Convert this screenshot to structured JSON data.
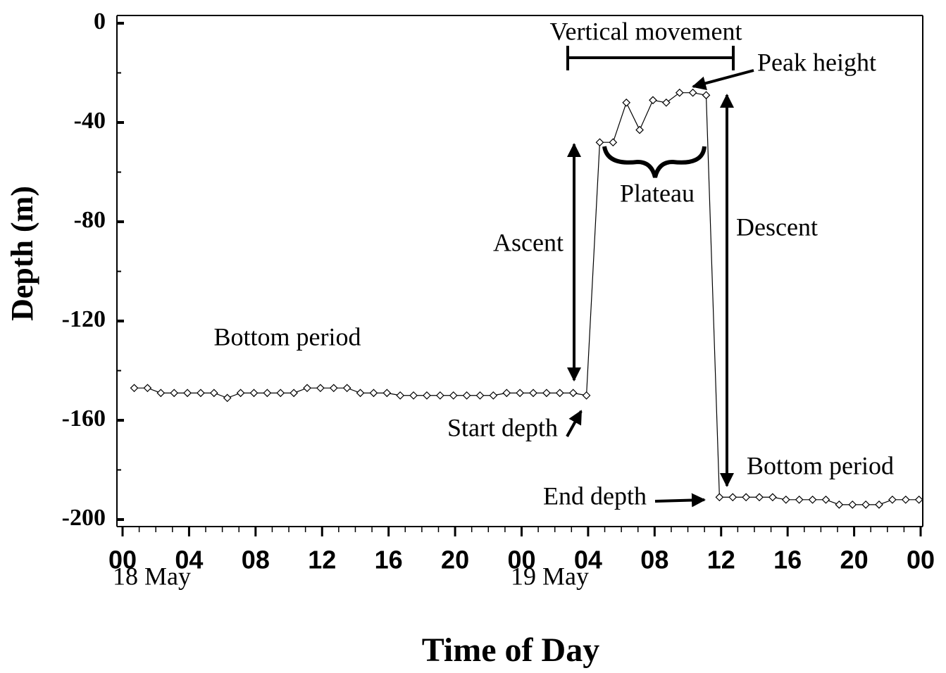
{
  "chart_data": {
    "type": "line",
    "xlabel": "Time of Day",
    "ylabel": "Depth (m)",
    "x": [
      0.7,
      1.5,
      2.3,
      3.1,
      3.9,
      4.7,
      5.5,
      6.3,
      7.1,
      7.9,
      8.7,
      9.5,
      10.3,
      11.1,
      11.9,
      12.7,
      13.5,
      14.3,
      15.1,
      15.9,
      16.7,
      17.5,
      18.3,
      19.1,
      19.9,
      20.7,
      21.5,
      22.3,
      23.1,
      23.9,
      24.7,
      25.5,
      26.3,
      27.1,
      27.9,
      28.7,
      29.5,
      30.3,
      31.1,
      31.9,
      32.7,
      33.5,
      34.3,
      35.1,
      35.9,
      36.7,
      37.5,
      38.3,
      39.1,
      39.9,
      40.7,
      41.5,
      42.3,
      43.1,
      43.9,
      44.7,
      45.5,
      46.3,
      47.1,
      47.9
    ],
    "series": [
      {
        "color": "#000000",
        "values": [
          -147,
          -147,
          -149,
          -149,
          -149,
          -149,
          -149,
          -151,
          -149,
          -149,
          -149,
          -149,
          -149,
          -147,
          -147,
          -147,
          -147,
          -149,
          -149,
          -149,
          -150,
          -150,
          -150,
          -150,
          -150,
          -150,
          -150,
          -150,
          -149,
          -149,
          -149,
          -149,
          -149,
          -149,
          -150,
          -48,
          -48,
          -32,
          -43,
          -31,
          -32,
          -28,
          -28,
          -29,
          -191,
          -191,
          -191,
          -191,
          -191,
          -192,
          -192,
          -192,
          -192,
          -194,
          -194,
          -194,
          -194,
          -192,
          -192,
          -192
        ]
      }
    ],
    "xlim": [
      0,
      48
    ],
    "xticks": [
      {
        "value": 0,
        "label": "00"
      },
      {
        "value": 4,
        "label": "04"
      },
      {
        "value": 8,
        "label": "08"
      },
      {
        "value": 12,
        "label": "12"
      },
      {
        "value": 16,
        "label": "16"
      },
      {
        "value": 20,
        "label": "20"
      },
      {
        "value": 24,
        "label": "00"
      },
      {
        "value": 28,
        "label": "04"
      },
      {
        "value": 32,
        "label": "08"
      },
      {
        "value": 36,
        "label": "12"
      },
      {
        "value": 40,
        "label": "16"
      },
      {
        "value": 44,
        "label": "20"
      },
      {
        "value": 48,
        "label": "00"
      }
    ],
    "x_minor_tick_step": 1,
    "ylim": [
      0,
      -200
    ],
    "yticks": [
      0,
      -40,
      -80,
      -120,
      -160,
      -200
    ],
    "y_minor_tick_step": 20,
    "annotations": {
      "date_1": "18 May",
      "date_2": "19 May",
      "vertical_movement": "Vertical movement",
      "peak_height": "Peak height",
      "plateau": "Plateau",
      "ascent": "Ascent",
      "descent": "Descent",
      "bottom_period_1": "Bottom period",
      "bottom_period_2": "Bottom period",
      "start_depth": "Start depth",
      "end_depth": "End depth"
    }
  }
}
